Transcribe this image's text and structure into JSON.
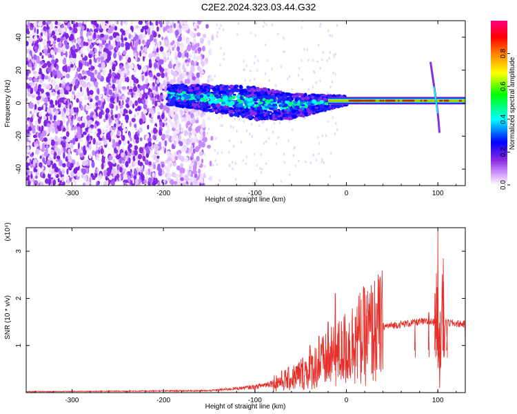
{
  "chart_data": [
    {
      "type": "heatmap",
      "title": "C2E2.2024.323.03.44.G32",
      "xlabel": "Height of straight line (km)",
      "ylabel": "Frequency (Hz)",
      "xlim": [
        -350,
        130
      ],
      "ylim": [
        -50,
        50
      ],
      "x_ticks": [
        -300,
        -200,
        -100,
        0,
        100
      ],
      "x_tick_labels": [
        "-300",
        "-200",
        "-100",
        "0",
        "100"
      ],
      "y_ticks": [
        -40,
        -20,
        0,
        20,
        40
      ],
      "y_tick_labels": [
        "-40",
        "-20",
        "0",
        "20",
        "40"
      ],
      "colorbar": {
        "label": "Normalized spectral amplitude",
        "range": [
          0.0,
          1.0
        ],
        "ticks": [
          0.0,
          0.2,
          0.4,
          0.6,
          0.8
        ],
        "tick_labels": [
          "0.0",
          "0.2",
          "0.4",
          "0.6",
          "0.8"
        ],
        "colors": [
          "#ffffff",
          "#d9a6ff",
          "#8a2be2",
          "#0000ff",
          "#00ffff",
          "#00ff00",
          "#ffff00",
          "#ff8000",
          "#ff0000",
          "#ff0080"
        ]
      },
      "features": {
        "noise_region_x": [
          -350,
          -155
        ],
        "signal_band_center_hz": [
          [
            -190,
            5
          ],
          [
            -150,
            3
          ],
          [
            -100,
            0
          ],
          [
            -60,
            -2
          ],
          [
            -30,
            0
          ],
          [
            0,
            1.5
          ],
          [
            130,
            1.5
          ]
        ],
        "signal_band_halfwidth_hz": [
          [
            -190,
            6
          ],
          [
            -100,
            10
          ],
          [
            -40,
            6
          ],
          [
            0,
            2.5
          ],
          [
            130,
            2.5
          ]
        ],
        "bright_line_hz": 1.5,
        "bright_line_x": [
          -20,
          130
        ],
        "spike_x": 98
      }
    },
    {
      "type": "line",
      "xlabel": "Height of straight line (km)",
      "ylabel": "SNR (10 * v/v)",
      "y_multiplier": "(x10⁴)",
      "xlim": [
        -350,
        130
      ],
      "ylim": [
        0,
        3.5
      ],
      "x_ticks": [
        -300,
        -200,
        -100,
        0,
        100
      ],
      "x_tick_labels": [
        "-300",
        "-200",
        "-100",
        "0",
        "100"
      ],
      "y_ticks": [
        1,
        2,
        3
      ],
      "y_tick_labels": [
        "1",
        "2",
        "3"
      ],
      "series": [
        {
          "color": "#e8302a",
          "baseline": [
            [
              -350,
              0.02
            ],
            [
              -150,
              0.04
            ],
            [
              -100,
              0.12
            ],
            [
              -60,
              0.3
            ],
            [
              -30,
              0.6
            ],
            [
              -10,
              0.8
            ],
            [
              10,
              1.1
            ],
            [
              40,
              1.4
            ],
            [
              80,
              1.5
            ],
            [
              100,
              1.5
            ],
            [
              130,
              1.45
            ]
          ],
          "spikes": [
            [
              -75,
              0.3
            ],
            [
              -55,
              0.55
            ],
            [
              -40,
              1.0
            ],
            [
              -30,
              1.2
            ],
            [
              -20,
              1.5
            ],
            [
              -12,
              2.1
            ],
            [
              -5,
              1.3
            ],
            [
              10,
              1.6
            ],
            [
              75,
              1.5
            ],
            [
              90,
              1.7
            ],
            [
              97,
              2.1
            ],
            [
              100,
              3.45
            ],
            [
              102,
              0.1
            ],
            [
              106,
              2.85
            ],
            [
              110,
              1.2
            ]
          ]
        }
      ]
    }
  ]
}
